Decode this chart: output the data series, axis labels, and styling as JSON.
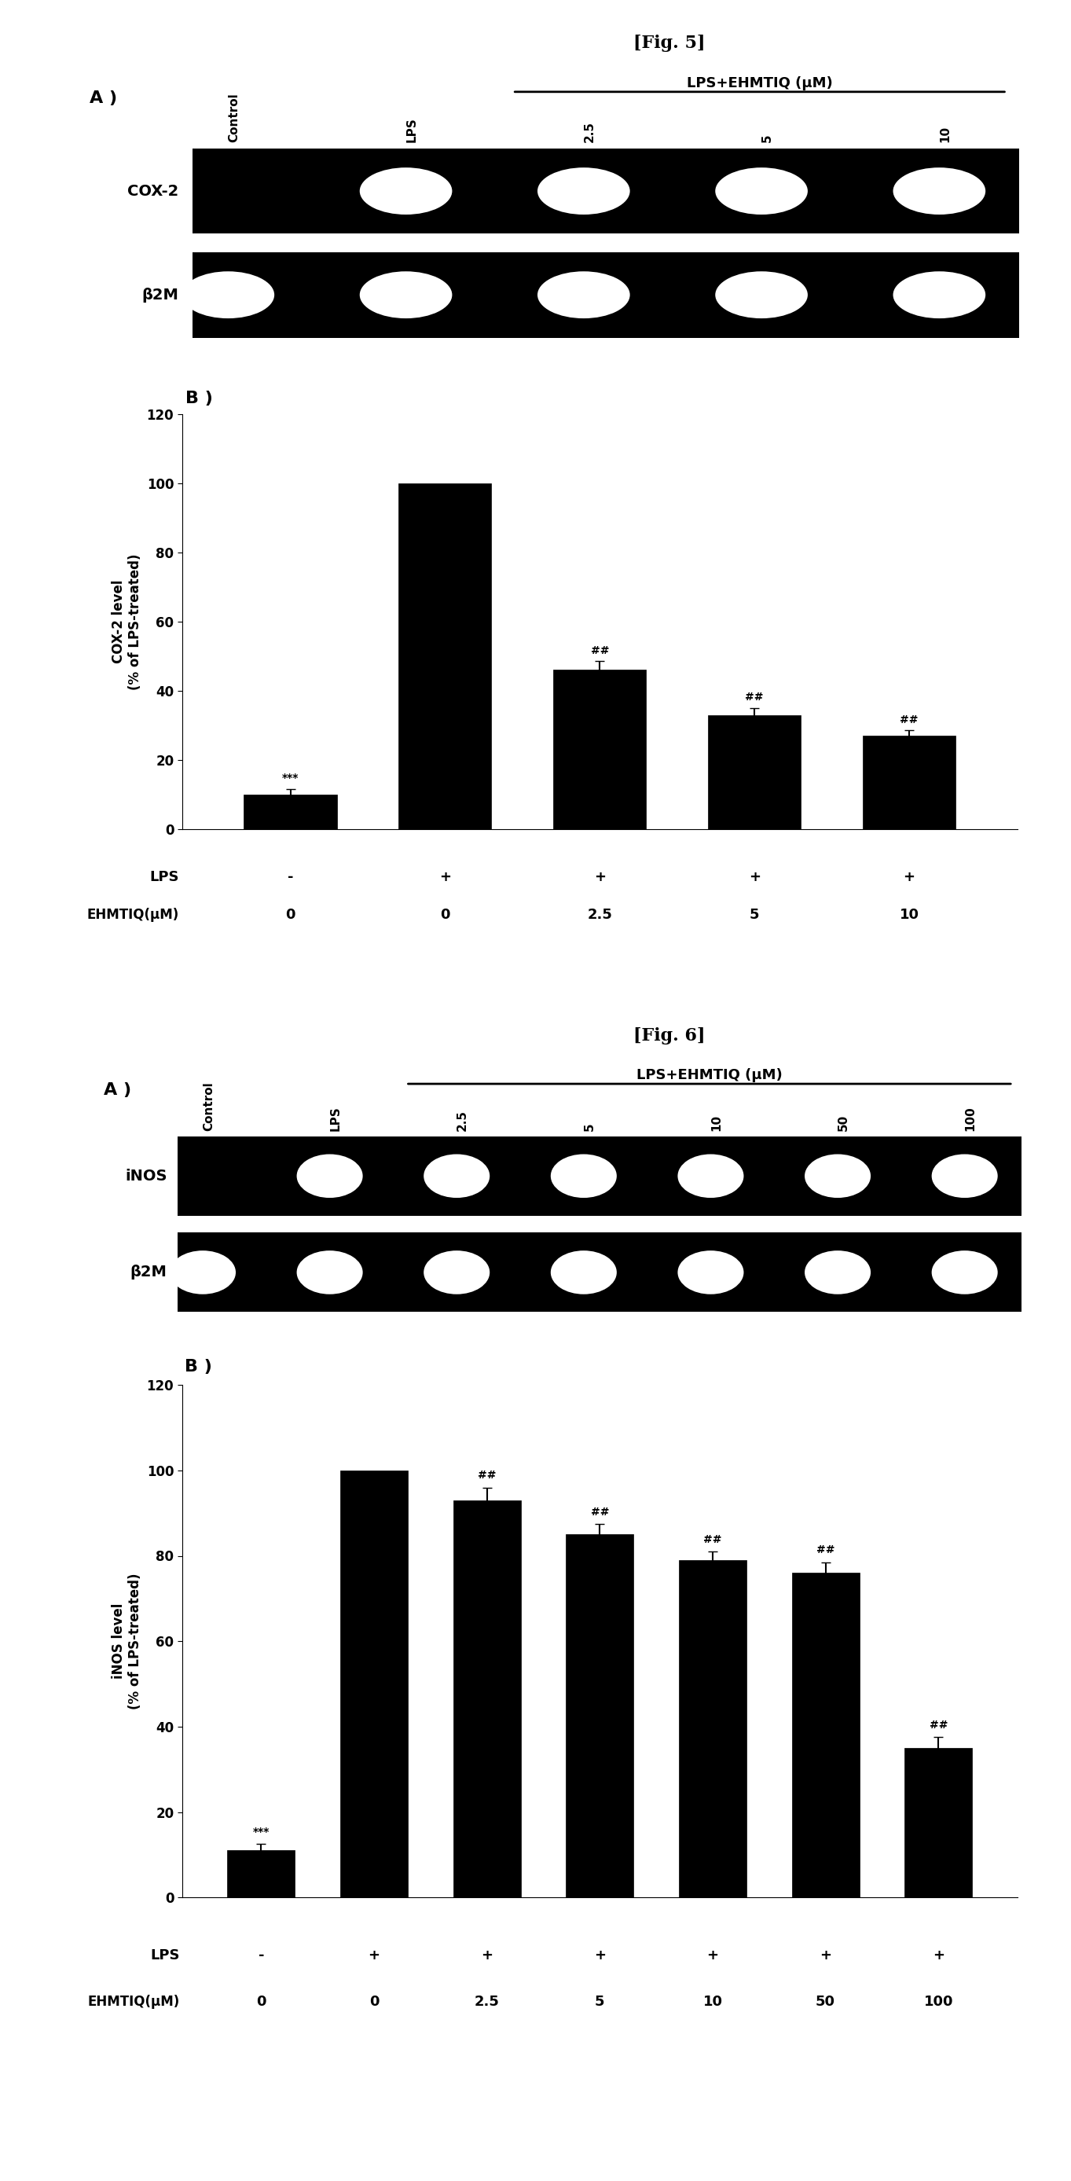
{
  "fig5_title": "[Fig. 5]",
  "fig6_title": "[Fig. 6]",
  "gel_header_fig5": "LPS+EHMTIQ (μM)",
  "gel_header_fig6": "LPS+EHMTIQ (μM)",
  "fig5_col_labels": [
    "Control",
    "LPS",
    "2.5",
    "5",
    "10"
  ],
  "fig6_col_labels": [
    "Control",
    "LPS",
    "2.5",
    "5",
    "10",
    "50",
    "100"
  ],
  "fig5_gene1": "COX-2",
  "fig5_gene2": "β2M",
  "fig6_gene1": "iNOS",
  "fig6_gene2": "β2M",
  "fig5_bar_values": [
    10,
    100,
    46,
    33,
    27
  ],
  "fig5_bar_errors": [
    1.5,
    0,
    2.5,
    2.0,
    1.5
  ],
  "fig6_bar_values": [
    11,
    100,
    93,
    85,
    79,
    76,
    35
  ],
  "fig6_bar_errors": [
    1.5,
    0,
    3.0,
    2.5,
    2.0,
    2.5,
    2.5
  ],
  "fig5_ylabel": "COX-2 level\n(% of LPS-treated)",
  "fig6_ylabel": "iNOS level\n(% of LPS-treated)",
  "fig5_ylim": [
    0,
    120
  ],
  "fig6_ylim": [
    0,
    120
  ],
  "fig5_yticks": [
    0,
    20,
    40,
    60,
    80,
    100,
    120
  ],
  "fig6_yticks": [
    0,
    20,
    40,
    60,
    80,
    100,
    120
  ],
  "fig5_lps_row": [
    "-",
    "+",
    "+",
    "+",
    "+"
  ],
  "fig5_ehmtiq_row": [
    "0",
    "0",
    "2.5",
    "5",
    "10"
  ],
  "fig6_lps_row": [
    "-",
    "+",
    "+",
    "+",
    "+",
    "+",
    "+"
  ],
  "fig6_ehmtiq_row": [
    "0",
    "0",
    "2.5",
    "5",
    "10",
    "50",
    "100"
  ],
  "fig5_significance_bar1": "***",
  "fig5_significance_bar3": "##",
  "fig5_significance_bar4": "##",
  "fig5_significance_bar5": "##",
  "fig6_significance_bar1": "***",
  "fig6_significance_bar3": "##",
  "fig6_significance_bar4": "##",
  "fig6_significance_bar5": "##",
  "fig6_significance_bar6": "##",
  "fig6_significance_bar7": "##",
  "bar_color": "#000000",
  "background_color": "#ffffff",
  "fig5_cox2_bands": [
    0,
    1,
    1,
    1,
    1
  ],
  "fig5_b2m_bands": [
    1,
    1,
    1,
    1,
    1
  ],
  "fig6_inos_bands": [
    0,
    1,
    1,
    1,
    1,
    1,
    1
  ],
  "fig6_b2m_bands": [
    1,
    1,
    1,
    1,
    1,
    1,
    1
  ]
}
